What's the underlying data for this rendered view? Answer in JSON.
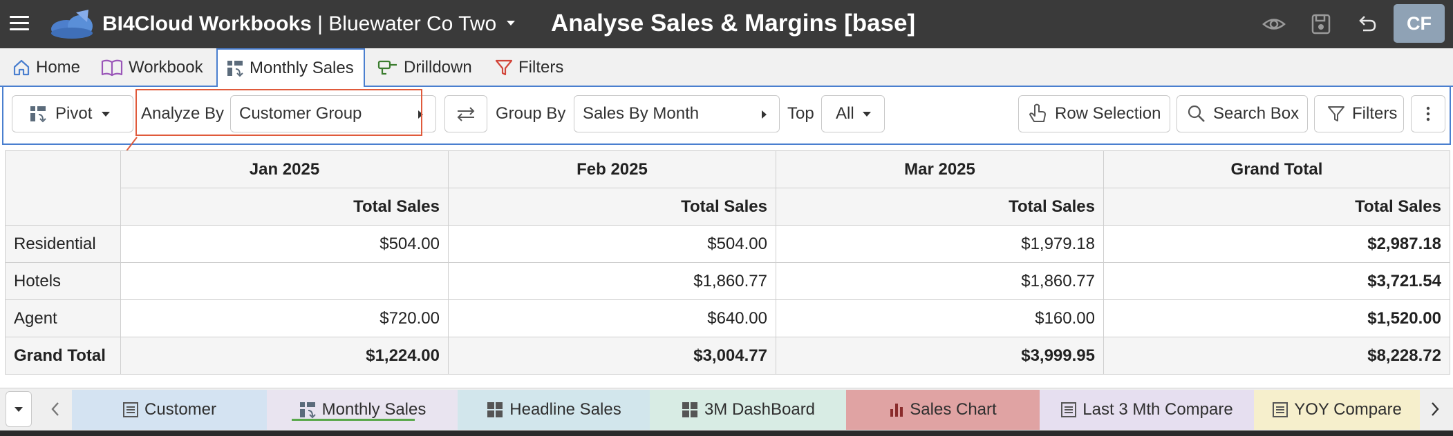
{
  "header": {
    "app_name": "BI4Cloud Workbooks",
    "separator": " | ",
    "company": "Bluewater Co Two",
    "page_title": "Analyse Sales & Margins [base]",
    "avatar_initials": "CF"
  },
  "nav_tabs": [
    {
      "label": "Home",
      "icon": "home-icon"
    },
    {
      "label": "Workbook",
      "icon": "book-icon"
    },
    {
      "label": "Monthly Sales",
      "icon": "pivot-icon",
      "active": true
    },
    {
      "label": "Drilldown",
      "icon": "drill-icon"
    },
    {
      "label": "Filters",
      "icon": "filter-icon"
    }
  ],
  "toolbar": {
    "pivot_label": "Pivot",
    "analyze_by_label": "Analyze By",
    "analyze_by_value": "Customer Group",
    "group_by_label": "Group By",
    "group_by_value": "Sales By Month",
    "top_label": "Top",
    "top_value": "All",
    "row_selection_label": "Row Selection",
    "search_box_label": "Search Box",
    "filters_label": "Filters"
  },
  "pivot": {
    "columns": [
      "Jan 2025",
      "Feb 2025",
      "Mar 2025",
      "Grand Total"
    ],
    "measure": "Total Sales",
    "rows": [
      {
        "label": "Residential",
        "values": [
          "$504.00",
          "$504.00",
          "$1,979.18",
          "$2,987.18"
        ]
      },
      {
        "label": "Hotels",
        "values": [
          "",
          "$1,860.77",
          "$1,860.77",
          "$3,721.54"
        ]
      },
      {
        "label": "Agent",
        "values": [
          "$720.00",
          "$640.00",
          "$160.00",
          "$1,520.00"
        ]
      }
    ],
    "grand_total": {
      "label": "Grand Total",
      "values": [
        "$1,224.00",
        "$3,004.77",
        "$3,999.95",
        "$8,228.72"
      ]
    }
  },
  "sheet_tabs": [
    {
      "label": "Customer",
      "color": "#d4e3f2",
      "icon": "list-icon"
    },
    {
      "label": "Monthly Sales",
      "color": "#e9e4f0",
      "icon": "pivot-icon",
      "active": true
    },
    {
      "label": "Headline Sales",
      "color": "#d2e6ec",
      "icon": "dashboard-icon"
    },
    {
      "label": "3M DashBoard",
      "color": "#d8ece4",
      "icon": "dashboard-icon"
    },
    {
      "label": "Sales Chart",
      "color": "#e0a3a3",
      "icon": "bar-chart-icon"
    },
    {
      "label": "Last 3 Mth Compare",
      "color": "#e6dff0",
      "icon": "list-icon"
    },
    {
      "label": "YOY Compare",
      "color": "#f6efcc",
      "icon": "list-icon"
    }
  ],
  "colors": {
    "header_bg": "#3a3a3a",
    "accent_blue": "#4a7fcf",
    "highlight_red": "#e05a3b",
    "active_sheet_underline": "#59a84b"
  }
}
